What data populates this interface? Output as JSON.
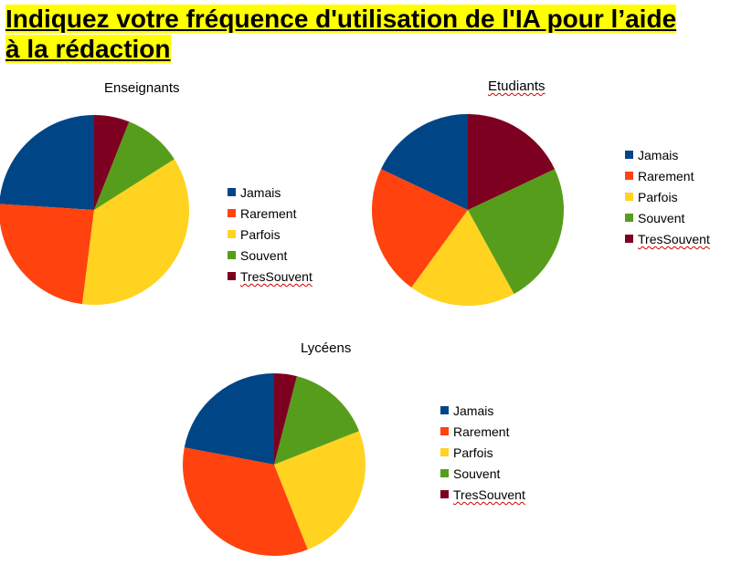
{
  "header": {
    "title_line1": "Indiquez votre fréquence d'utilisation de l'IA pour l’aide",
    "title_line2": "à la rédaction"
  },
  "colors": {
    "Jamais": "#004586",
    "Rarement": "#ff420e",
    "Parfois": "#ffd320",
    "Souvent": "#579d1c",
    "TresSouvent": "#7e0021"
  },
  "chart_data": [
    {
      "type": "pie",
      "title": "Enseignants",
      "labels": [
        "Jamais",
        "Rarement",
        "Parfois",
        "Souvent",
        "TresSouvent"
      ],
      "values": [
        24,
        24,
        36,
        10,
        6
      ],
      "legend_position": "right"
    },
    {
      "type": "pie",
      "title": "Etudiants",
      "labels": [
        "Jamais",
        "Rarement",
        "Parfois",
        "Souvent",
        "TresSouvent"
      ],
      "values": [
        18,
        22,
        18,
        24,
        18
      ],
      "legend_position": "right"
    },
    {
      "type": "pie",
      "title": "Lycéens",
      "labels": [
        "Jamais",
        "Rarement",
        "Parfois",
        "Souvent",
        "TresSouvent"
      ],
      "values": [
        22,
        34,
        25,
        15,
        4
      ],
      "legend_position": "right"
    }
  ]
}
